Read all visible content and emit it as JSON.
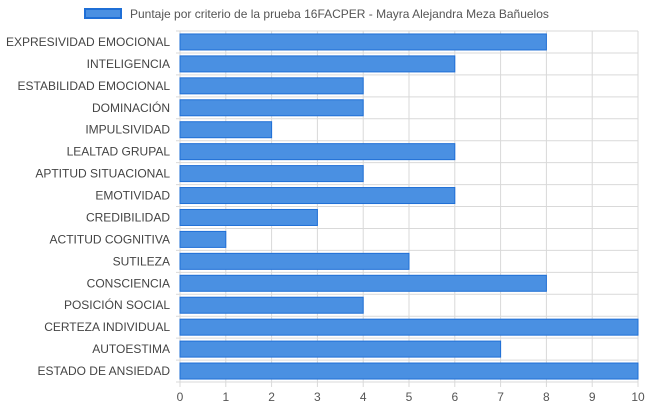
{
  "chart_data": {
    "type": "bar",
    "orientation": "horizontal",
    "categories": [
      "EXPRESIVIDAD EMOCIONAL",
      "INTELIGENCIA",
      "ESTABILIDAD EMOCIONAL",
      "DOMINACIÓN",
      "IMPULSIVIDAD",
      "LEALTAD GRUPAL",
      "APTITUD SITUACIONAL",
      "EMOTIVIDAD",
      "CREDIBILIDAD",
      "ACTITUD COGNITIVA",
      "SUTILEZA",
      "CONSCIENCIA",
      "POSICIÓN SOCIAL",
      "CERTEZA INDIVIDUAL",
      "AUTOESTIMA",
      "ESTADO DE ANSIEDAD"
    ],
    "series": [
      {
        "name": "Puntaje por criterio de la prueba 16FACPER - Mayra Alejandra Meza Bañuelos",
        "values": [
          8,
          6,
          4,
          4,
          2,
          6,
          4,
          6,
          3,
          1,
          5,
          8,
          4,
          10,
          7,
          10
        ],
        "color": "#4a90e2",
        "border_color": "#1f6fd6"
      }
    ],
    "xlim": [
      0,
      10
    ],
    "x_ticks": [
      0,
      1,
      2,
      3,
      4,
      5,
      6,
      7,
      8,
      9,
      10
    ],
    "grid": true,
    "legend_position": "top"
  },
  "colors": {
    "grid": "#d9d9d9",
    "axis_text": "#555555",
    "category_text": "#444444"
  }
}
